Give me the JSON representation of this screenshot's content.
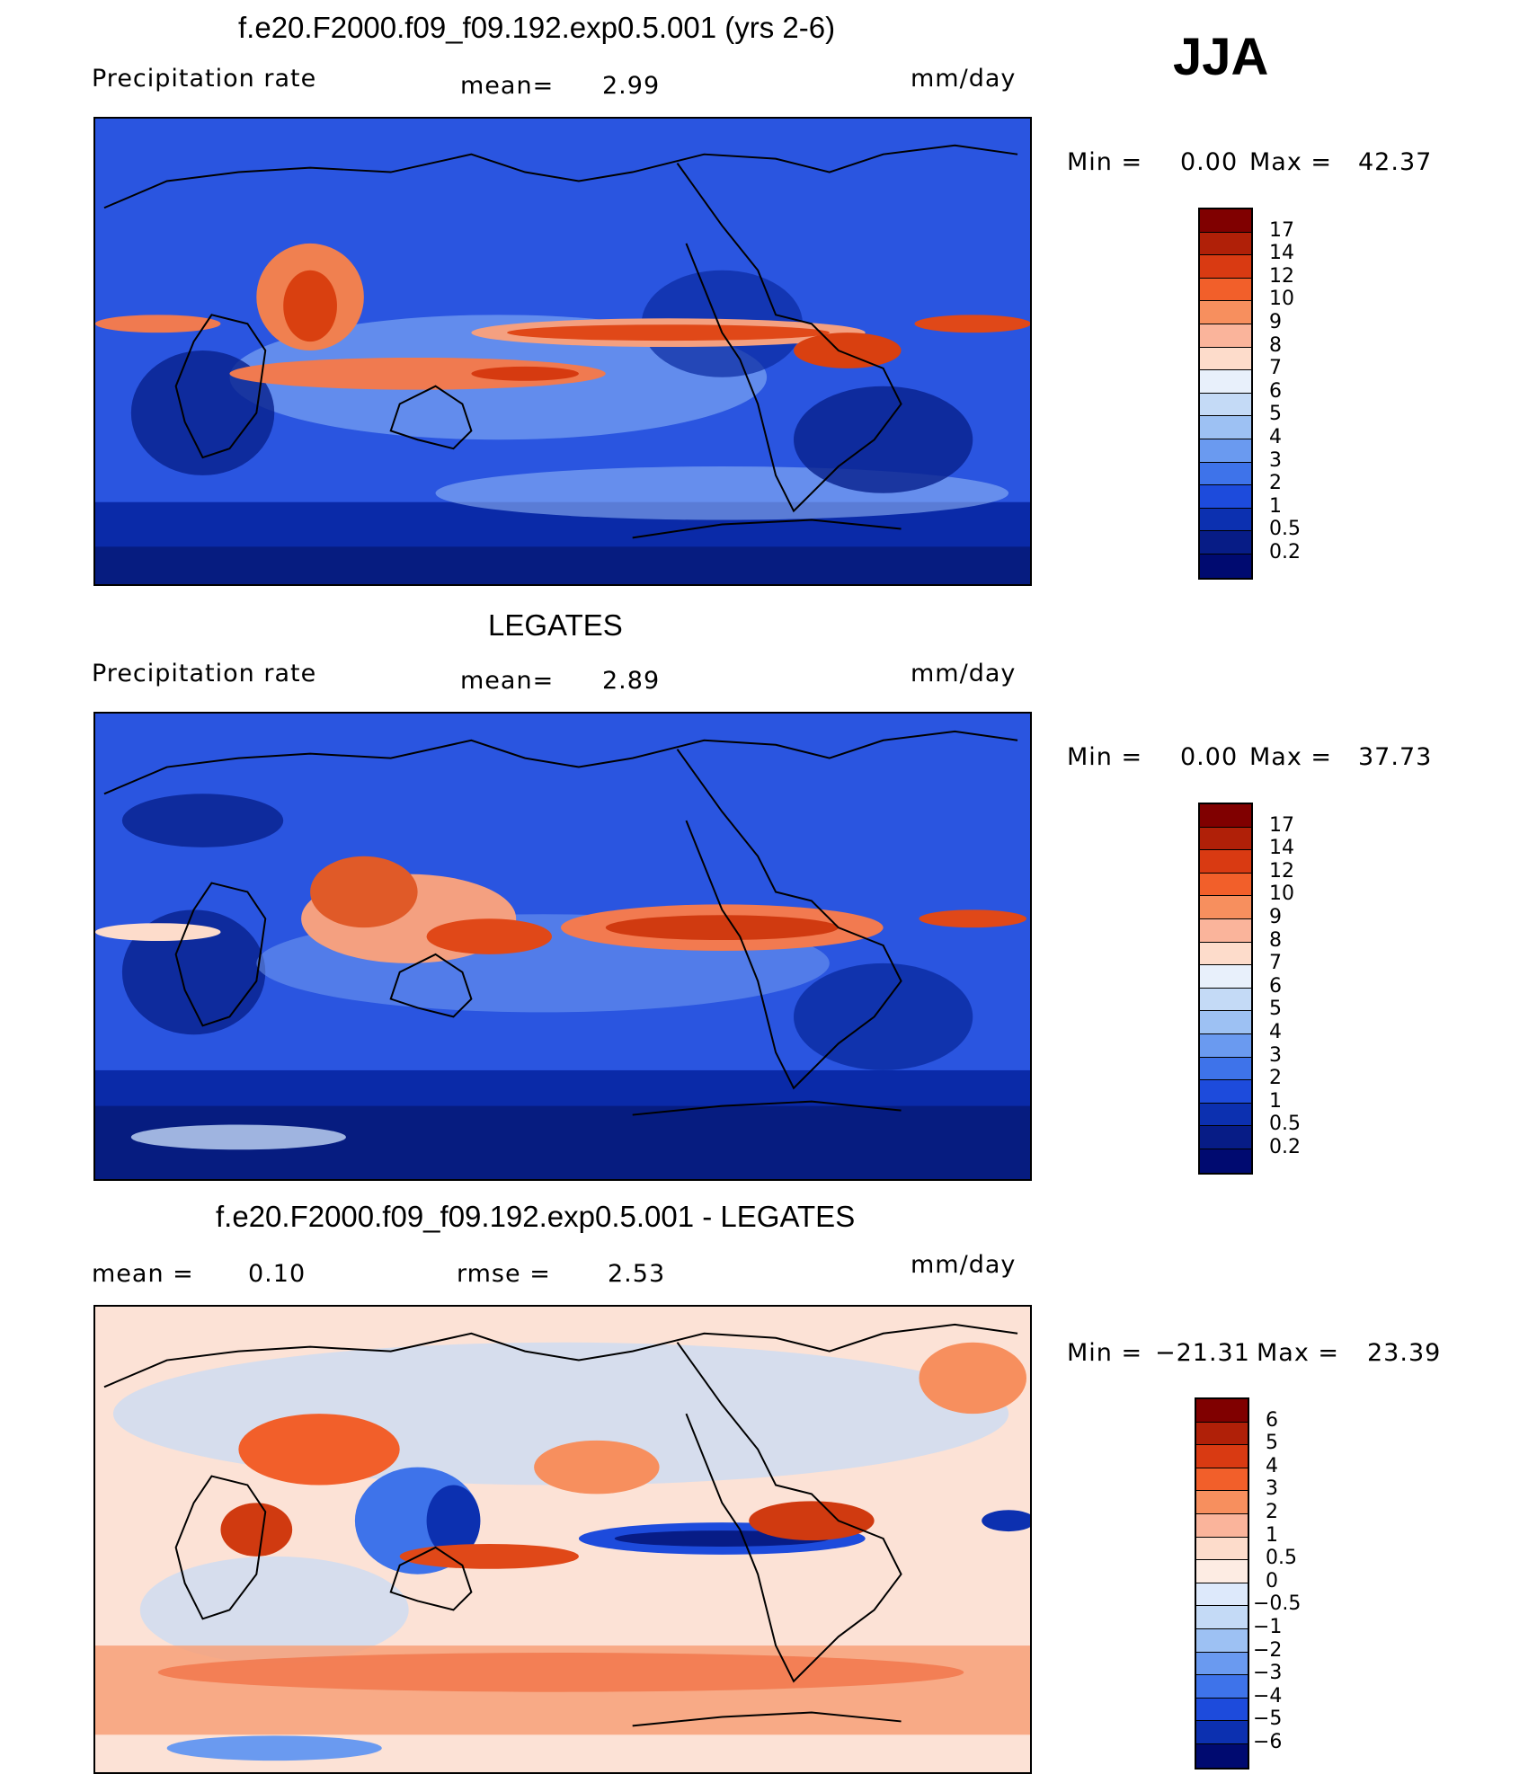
{
  "season": "JJA",
  "panels": [
    {
      "title": "f.e20.F2000.f09_f09.192.exp0.5.001 (yrs 2-6)",
      "left_label": "Precipitation  rate",
      "center_label": "mean=",
      "center_value": "2.99",
      "units": "mm/day",
      "min_label": "Min  =",
      "min_value": "0.00",
      "max_label": "Max  =",
      "max_value": "42.37",
      "colorbar": {
        "labels": [
          "17",
          "14",
          "12",
          "10",
          "9",
          "8",
          "7",
          "6",
          "5",
          "4",
          "3",
          "2",
          "1",
          "0.5",
          "0.2"
        ],
        "colors": [
          "#800000",
          "#b02008",
          "#d93a12",
          "#f25f2a",
          "#f78f5e",
          "#fab49b",
          "#fddccb",
          "#e8f0fb",
          "#c4daf6",
          "#9dc1f3",
          "#6a9af0",
          "#3e73ea",
          "#1d4bdc",
          "#0c30b0",
          "#071c86",
          "#000a70"
        ]
      },
      "map_fill": "#1a3fd6"
    },
    {
      "title": "LEGATES",
      "left_label": "Precipitation  rate",
      "center_label": "mean=",
      "center_value": "2.89",
      "units": "mm/day",
      "min_label": "Min  =",
      "min_value": "0.00",
      "max_label": "Max  =",
      "max_value": "37.73",
      "colorbar": {
        "labels": [
          "17",
          "14",
          "12",
          "10",
          "9",
          "8",
          "7",
          "6",
          "5",
          "4",
          "3",
          "2",
          "1",
          "0.5",
          "0.2"
        ],
        "colors": [
          "#800000",
          "#b02008",
          "#d93a12",
          "#f25f2a",
          "#f78f5e",
          "#fab49b",
          "#fddccb",
          "#e8f0fb",
          "#c4daf6",
          "#9dc1f3",
          "#6a9af0",
          "#3e73ea",
          "#1d4bdc",
          "#0c30b0",
          "#071c86",
          "#000a70"
        ]
      },
      "map_fill": "#1a3fd6"
    },
    {
      "title": "f.e20.F2000.f09_f09.192.exp0.5.001 - LEGATES",
      "left_label": "mean  =",
      "left_value": "0.10",
      "center_label": "rmse  =",
      "center_value": "2.53",
      "units": "mm/day",
      "min_label": "Min  =",
      "min_value": "−21.31",
      "max_label": "Max  =",
      "max_value": "23.39",
      "colorbar": {
        "labels": [
          "6",
          "5",
          "4",
          "3",
          "2",
          "1",
          "0.5",
          "0",
          "−0.5",
          "−1",
          "−2",
          "−3",
          "−4",
          "−5",
          "−6"
        ],
        "colors": [
          "#800000",
          "#b02008",
          "#d93a12",
          "#f25f2a",
          "#f78f5e",
          "#fab49b",
          "#fddccb",
          "#fdece3",
          "#dde9fb",
          "#c4daf6",
          "#9dc1f3",
          "#6a9af0",
          "#3e73ea",
          "#1d4bdc",
          "#0c30b0",
          "#000a70"
        ]
      },
      "map_fill": "#fbd4c2"
    }
  ]
}
